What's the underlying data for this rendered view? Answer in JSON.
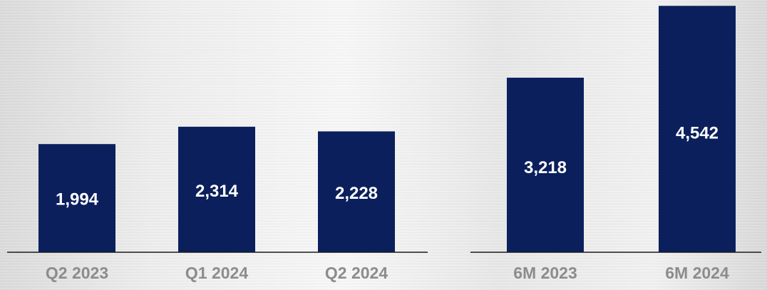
{
  "chart_data": [
    {
      "type": "bar",
      "categories": [
        "Q2 2023",
        "Q1 2024",
        "Q2 2024"
      ],
      "values": [
        1994,
        2314,
        2228
      ],
      "value_labels": [
        "1,994",
        "2,314",
        "2,228"
      ],
      "bar_color": "#0b1f5c",
      "label_color": "#ffffff",
      "category_color": "#8c8c8c",
      "ylim": [
        0,
        4650
      ]
    },
    {
      "type": "bar",
      "categories": [
        "6M 2023",
        "6M 2024"
      ],
      "values": [
        3218,
        4542
      ],
      "value_labels": [
        "3,218",
        "4,542"
      ],
      "bar_color": "#0b1f5c",
      "label_color": "#ffffff",
      "category_color": "#8c8c8c",
      "ylim": [
        0,
        4650
      ]
    }
  ]
}
